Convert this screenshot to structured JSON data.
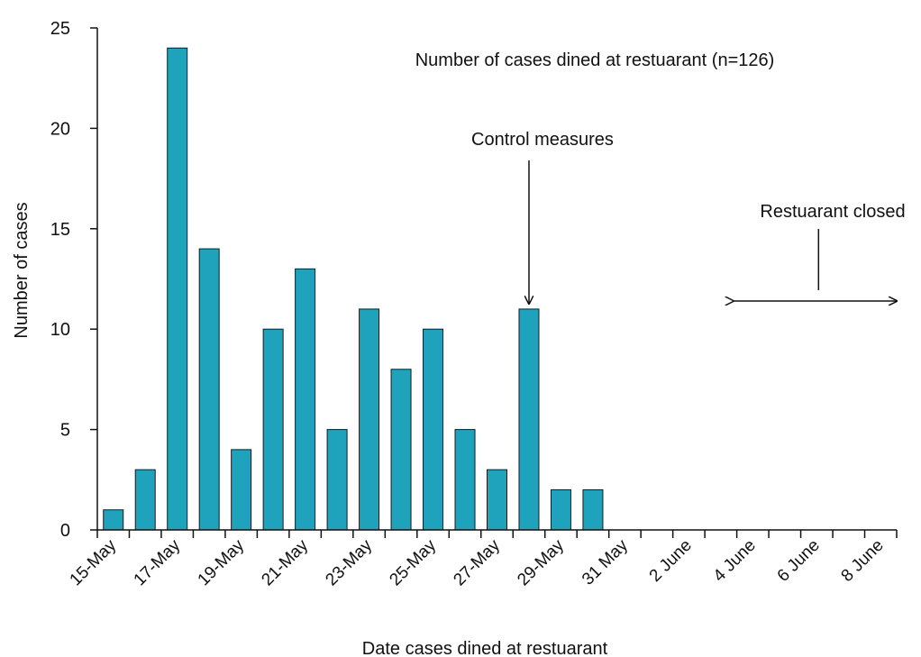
{
  "chart_data": {
    "type": "bar",
    "title": "Number of cases dined at restuarant (n=126)",
    "xlabel": "Date cases dined at restuarant",
    "ylabel": "Number of cases",
    "ylim": [
      0,
      25
    ],
    "yticks": [
      0,
      5,
      10,
      15,
      20,
      25
    ],
    "categories": [
      "15-May",
      "16-May",
      "17-May",
      "18-May",
      "19-May",
      "20-May",
      "21-May",
      "22-May",
      "23-May",
      "24-May",
      "25-May",
      "26-May",
      "27-May",
      "28-May",
      "29-May",
      "30-May",
      "31 May",
      "1 June",
      "2 June",
      "3 June",
      "4 June",
      "5 June",
      "6 June",
      "7 June",
      "8 June"
    ],
    "tick_labels": [
      "15-May",
      "17-May",
      "19-May",
      "21-May",
      "23-May",
      "25-May",
      "27-May",
      "29-May",
      "31 May",
      "2 June",
      "4 June",
      "6 June",
      "8 June"
    ],
    "values": [
      1,
      3,
      24,
      14,
      4,
      10,
      13,
      5,
      11,
      8,
      10,
      5,
      3,
      11,
      2,
      2,
      0,
      0,
      0,
      0,
      0,
      0,
      0,
      0,
      0
    ],
    "grid": false,
    "legend": "none",
    "bar_color": "#1fa3bd",
    "annotations": [
      {
        "text": "Control measures",
        "category": "28-May",
        "kind": "down-arrow"
      },
      {
        "text": "Restuarant closed",
        "from": "4 June",
        "to": "8 June",
        "kind": "double-arrow"
      }
    ]
  }
}
